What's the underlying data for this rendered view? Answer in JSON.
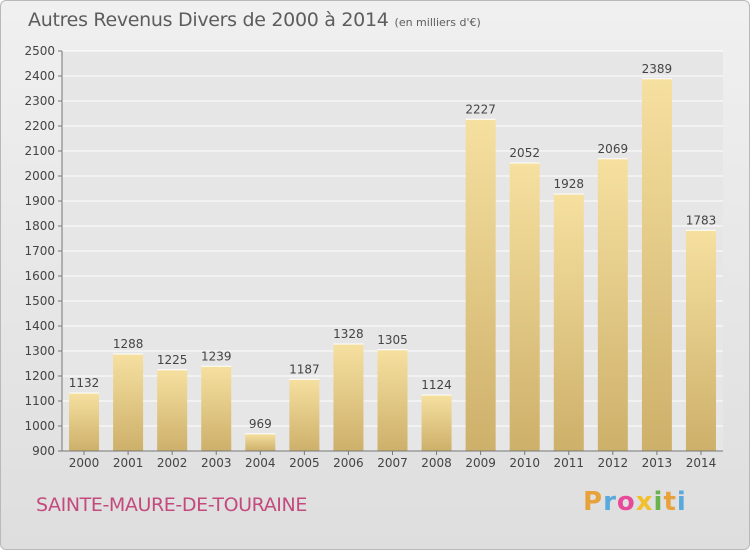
{
  "header": {
    "title": "Autres Revenus Divers de 2000 à 2014",
    "unit": "(en milliers d'€)"
  },
  "footer": {
    "place": "SAINTE-MAURE-DE-TOURAINE",
    "logo_letters": [
      "P",
      "r",
      "o",
      "x",
      "i",
      "t",
      "i"
    ]
  },
  "colors": {
    "place": "#c44a7e",
    "logo": [
      "#e8a23b",
      "#5aa9dd",
      "#e84a9a",
      "#f2c02e",
      "#69b34c",
      "#e8a23b",
      "#5aa9dd"
    ],
    "bar_top": "#f6e0a0",
    "bar_bottom": "#cdb06a"
  },
  "chart_data": {
    "type": "bar",
    "title": "Autres Revenus Divers de 2000 à 2014",
    "categories": [
      "2000",
      "2001",
      "2002",
      "2003",
      "2004",
      "2005",
      "2006",
      "2007",
      "2008",
      "2009",
      "2010",
      "2011",
      "2012",
      "2013",
      "2014"
    ],
    "values": [
      1132,
      1288,
      1225,
      1239,
      969,
      1187,
      1328,
      1305,
      1124,
      2227,
      2052,
      1928,
      2069,
      2389,
      1783
    ],
    "ylim": [
      900,
      2500
    ],
    "yticks": [
      900,
      1000,
      1100,
      1200,
      1300,
      1400,
      1500,
      1600,
      1700,
      1800,
      1900,
      2000,
      2100,
      2200,
      2300,
      2400,
      2500
    ],
    "grid": true,
    "xlabel": "",
    "ylabel": ""
  }
}
